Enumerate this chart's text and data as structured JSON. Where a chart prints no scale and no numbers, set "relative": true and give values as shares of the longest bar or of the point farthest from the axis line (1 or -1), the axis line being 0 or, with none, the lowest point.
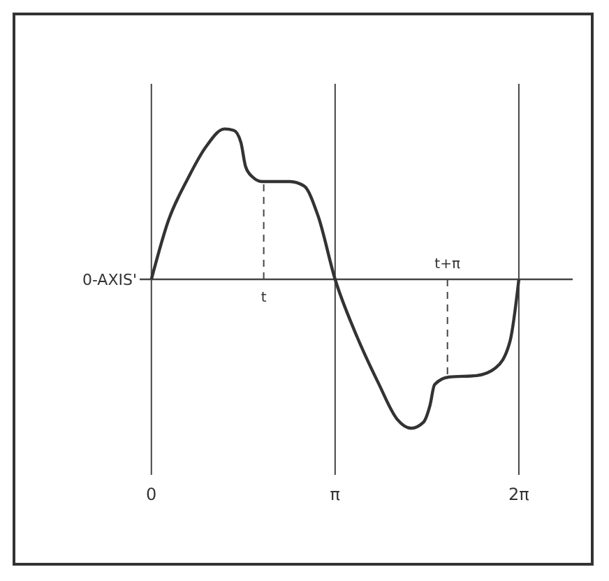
{
  "chart_data": {
    "type": "line",
    "relative": true,
    "series": [
      {
        "color": "#333333",
        "x": [
          0,
          0.29,
          0.61,
          0.93,
          1.25,
          1.41,
          1.53,
          1.61,
          1.73,
          1.89,
          2.37,
          2.61,
          2.85,
          3.14,
          3.48,
          3.88,
          4.2,
          4.44,
          4.65,
          4.76,
          4.84,
          5.08,
          5.56,
          5.88,
          6.13,
          6.28
        ],
        "values": [
          0,
          0.39,
          0.66,
          0.88,
          1,
          0.99,
          0.91,
          0.75,
          0.68,
          0.65,
          0.65,
          0.62,
          0.42,
          0,
          -0.35,
          -0.69,
          -0.93,
          -0.99,
          -0.95,
          -0.84,
          -0.7,
          -0.65,
          -0.64,
          -0.59,
          -0.41,
          0
        ]
      }
    ],
    "xlim": [
      -0.2,
      7.2
    ],
    "xticks": [
      {
        "value": 0,
        "label": "0"
      },
      {
        "value": 3.14,
        "label": "π"
      },
      {
        "value": 6.28,
        "label": "2π"
      }
    ],
    "grid": "x",
    "line_style": "solid",
    "marker": "none",
    "ref_lines": [
      {
        "axis": "x",
        "value": 1.92,
        "label": "t",
        "line_style": "dashed"
      },
      {
        "axis": "x",
        "value": 5.06,
        "label": "t+π",
        "line_style": "dashed"
      }
    ],
    "annotations": [
      "0-AXIS'"
    ]
  }
}
